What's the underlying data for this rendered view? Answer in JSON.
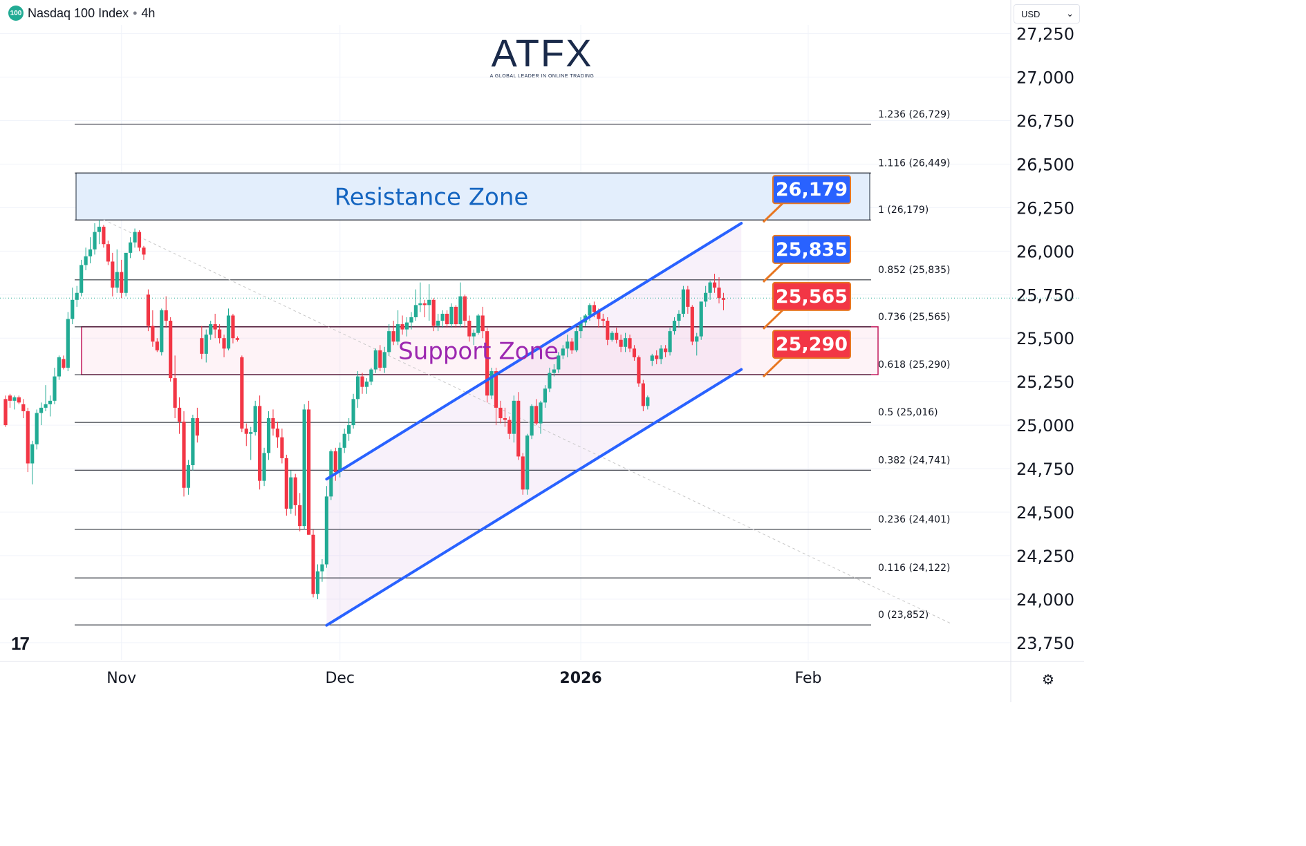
{
  "header": {
    "symbol_badge": "100",
    "title": "Nasdaq 100 Index",
    "separator": "•",
    "interval": "4h"
  },
  "logo": {
    "word": "ATFX",
    "tagline": "A GLOBAL LEADER IN ONLINE TRADING"
  },
  "currency": {
    "value": "USD",
    "icon": "chevron-down-icon"
  },
  "colors": {
    "up": "#22ab94",
    "down": "#f23645",
    "channel": "#2962ff",
    "resistance_label": "#2962ff",
    "support_label": "#f23645",
    "resistance_zone_fill": "#e3eefc",
    "support_zone_border": "#c2185b",
    "support_text": "#9c27b0",
    "resistance_text": "#1565c0"
  },
  "chart_data": {
    "type": "candlestick",
    "title": "Nasdaq 100 Index • 4h",
    "y_axis": {
      "range": [
        23650,
        27300
      ],
      "ticks": [
        23750,
        24000,
        24250,
        24500,
        24750,
        25000,
        25250,
        25500,
        25750,
        26000,
        26250,
        26500,
        26750,
        27000,
        27250
      ],
      "tick_labels": [
        "23,750",
        "24,000",
        "24,250",
        "24,500",
        "24,750",
        "25,000",
        "25,250",
        "25,500",
        "25,750",
        "26,000",
        "26,250",
        "26,500",
        "26,750",
        "27,000",
        "27,250"
      ]
    },
    "x_axis": {
      "labels": [
        {
          "text": "Nov",
          "bold": false,
          "bar": 26
        },
        {
          "text": "Dec",
          "bold": false,
          "bar": 75
        },
        {
          "text": "2026",
          "bold": true,
          "bar": 129
        },
        {
          "text": "Feb",
          "bold": false,
          "bar": 180
        }
      ],
      "bars_total": 220
    },
    "current_price": 25730,
    "candles": [
      [
        25150,
        25170,
        24990,
        25000
      ],
      [
        25170,
        25180,
        25100,
        25140
      ],
      [
        25140,
        25170,
        25090,
        25160
      ],
      [
        25160,
        25170,
        25120,
        25130
      ],
      [
        25120,
        25150,
        25040,
        25080
      ],
      [
        25080,
        25100,
        24730,
        24780
      ],
      [
        24780,
        24910,
        24660,
        24890
      ],
      [
        24890,
        25090,
        24860,
        25070
      ],
      [
        25070,
        25130,
        25000,
        25100
      ],
      [
        25100,
        25230,
        25080,
        25120
      ],
      [
        25120,
        25170,
        25050,
        25140
      ],
      [
        25140,
        25330,
        25120,
        25280
      ],
      [
        25280,
        25400,
        25260,
        25390
      ],
      [
        25380,
        25400,
        25320,
        25330
      ],
      [
        25330,
        25650,
        25310,
        25610
      ],
      [
        25610,
        25790,
        25580,
        25720
      ],
      [
        25720,
        25800,
        25680,
        25760
      ],
      [
        25760,
        25950,
        25740,
        25920
      ],
      [
        25920,
        26020,
        25890,
        25970
      ],
      [
        25970,
        26080,
        25930,
        26010
      ],
      [
        26010,
        26160,
        25980,
        26110
      ],
      [
        26110,
        26180,
        26040,
        26140
      ],
      [
        26140,
        26150,
        26020,
        26040
      ],
      [
        26040,
        26060,
        25920,
        25940
      ],
      [
        25940,
        25990,
        25740,
        25790
      ],
      [
        25790,
        26010,
        25760,
        25880
      ],
      [
        25880,
        25950,
        25730,
        25760
      ],
      [
        25760,
        25980,
        25740,
        25990
      ],
      [
        25990,
        26080,
        25960,
        26050
      ],
      [
        26050,
        26130,
        26020,
        26110
      ],
      [
        26110,
        26120,
        26000,
        26020
      ],
      [
        26020,
        26030,
        25950,
        25980
      ],
      [
        25750,
        25780,
        25540,
        25570
      ],
      [
        25570,
        25660,
        25450,
        25480
      ],
      [
        25480,
        25500,
        25420,
        25430
      ],
      [
        25420,
        25670,
        25400,
        25660
      ],
      [
        25660,
        25740,
        25560,
        25600
      ],
      [
        25600,
        25620,
        25250,
        25270
      ],
      [
        25270,
        25400,
        25040,
        25100
      ],
      [
        25100,
        25160,
        24950,
        25020
      ],
      [
        25020,
        25080,
        24590,
        24640
      ],
      [
        24640,
        24800,
        24600,
        24770
      ],
      [
        24770,
        25060,
        24740,
        25040
      ],
      [
        25040,
        25100,
        24900,
        24940
      ],
      [
        25500,
        25570,
        25380,
        25410
      ],
      [
        25410,
        25550,
        25360,
        25520
      ],
      [
        25520,
        25600,
        25490,
        25580
      ],
      [
        25580,
        25640,
        25500,
        25550
      ],
      [
        25550,
        25580,
        25470,
        25500
      ],
      [
        25500,
        25520,
        25390,
        25440
      ],
      [
        25440,
        25670,
        25430,
        25630
      ],
      [
        25630,
        25640,
        25470,
        25500
      ],
      [
        25500,
        25510,
        25480,
        25490
      ],
      [
        25390,
        25400,
        24960,
        24980
      ],
      [
        24980,
        25010,
        24880,
        24950
      ],
      [
        24950,
        24990,
        24800,
        24960
      ],
      [
        24960,
        25140,
        24940,
        25110
      ],
      [
        25110,
        25170,
        24630,
        24680
      ],
      [
        24680,
        24870,
        24650,
        24840
      ],
      [
        24840,
        25080,
        24800,
        25040
      ],
      [
        25040,
        25090,
        24940,
        24980
      ],
      [
        24980,
        25020,
        24870,
        24930
      ],
      [
        24930,
        24980,
        24780,
        24810
      ],
      [
        24810,
        24830,
        24480,
        24520
      ],
      [
        24520,
        24740,
        24490,
        24700
      ],
      [
        24700,
        24720,
        24480,
        24540
      ],
      [
        24540,
        24610,
        24390,
        24420
      ],
      [
        24420,
        25120,
        24400,
        25090
      ],
      [
        25090,
        25140,
        24370,
        24370
      ],
      [
        24370,
        24400,
        24010,
        24030
      ],
      [
        24030,
        24200,
        24000,
        24160
      ],
      [
        24160,
        24230,
        24100,
        24200
      ],
      [
        24200,
        24650,
        24180,
        24590
      ],
      [
        24590,
        24860,
        24570,
        24850
      ],
      [
        24850,
        24870,
        24680,
        24730
      ],
      [
        24730,
        24900,
        24700,
        24870
      ],
      [
        24870,
        24980,
        24840,
        24950
      ],
      [
        24950,
        25040,
        24910,
        25000
      ],
      [
        25000,
        25180,
        24980,
        25150
      ],
      [
        25150,
        25310,
        25100,
        25280
      ],
      [
        25280,
        25300,
        25180,
        25220
      ],
      [
        25220,
        25270,
        25180,
        25250
      ],
      [
        25250,
        25330,
        25230,
        25320
      ],
      [
        25320,
        25440,
        25300,
        25430
      ],
      [
        25430,
        25460,
        25310,
        25330
      ],
      [
        25330,
        25450,
        25300,
        25420
      ],
      [
        25420,
        25580,
        25400,
        25540
      ],
      [
        25540,
        25600,
        25460,
        25480
      ],
      [
        25480,
        25660,
        25460,
        25580
      ],
      [
        25580,
        25630,
        25520,
        25550
      ],
      [
        25550,
        25620,
        25510,
        25590
      ],
      [
        25590,
        25650,
        25550,
        25620
      ],
      [
        25620,
        25780,
        25600,
        25690
      ],
      [
        25690,
        25820,
        25650,
        25700
      ],
      [
        25700,
        25720,
        25620,
        25690
      ],
      [
        25690,
        25810,
        25600,
        25720
      ],
      [
        25720,
        25730,
        25540,
        25570
      ],
      [
        25570,
        25640,
        25540,
        25600
      ],
      [
        25600,
        25660,
        25560,
        25640
      ],
      [
        25640,
        25660,
        25560,
        25580
      ],
      [
        25580,
        25700,
        25560,
        25680
      ],
      [
        25680,
        25690,
        25560,
        25580
      ],
      [
        25580,
        25820,
        25560,
        25740
      ],
      [
        25740,
        25750,
        25560,
        25600
      ],
      [
        25600,
        25630,
        25480,
        25510
      ],
      [
        25510,
        25550,
        25460,
        25530
      ],
      [
        25530,
        25640,
        25520,
        25630
      ],
      [
        25630,
        25680,
        25500,
        25540
      ],
      [
        25540,
        25560,
        25130,
        25170
      ],
      [
        25170,
        25330,
        25150,
        25310
      ],
      [
        25310,
        25330,
        25000,
        25100
      ],
      [
        25100,
        25140,
        25010,
        25040
      ],
      [
        25040,
        25100,
        24990,
        25030
      ],
      [
        25030,
        25050,
        24920,
        24950
      ],
      [
        24950,
        25170,
        24900,
        25140
      ],
      [
        25140,
        25190,
        24800,
        24820
      ],
      [
        24820,
        24840,
        24600,
        24630
      ],
      [
        24630,
        24950,
        24600,
        24940
      ],
      [
        24940,
        25120,
        24920,
        25110
      ],
      [
        25110,
        25150,
        25000,
        25010
      ],
      [
        25010,
        25140,
        24950,
        25130
      ],
      [
        25130,
        25230,
        25100,
        25210
      ],
      [
        25210,
        25330,
        25190,
        25300
      ],
      [
        25300,
        25350,
        25280,
        25320
      ],
      [
        25320,
        25420,
        25300,
        25400
      ],
      [
        25400,
        25460,
        25380,
        25440
      ],
      [
        25440,
        25520,
        25390,
        25480
      ],
      [
        25480,
        25500,
        25410,
        25430
      ],
      [
        25430,
        25560,
        25420,
        25540
      ],
      [
        25540,
        25620,
        25500,
        25590
      ],
      [
        25590,
        25640,
        25570,
        25630
      ],
      [
        25630,
        25700,
        25600,
        25690
      ],
      [
        25690,
        25710,
        25620,
        25650
      ],
      [
        25650,
        25670,
        25560,
        25610
      ],
      [
        25610,
        25640,
        25560,
        25600
      ],
      [
        25600,
        25620,
        25460,
        25490
      ],
      [
        25490,
        25540,
        25480,
        25530
      ],
      [
        25530,
        25560,
        25470,
        25490
      ],
      [
        25490,
        25520,
        25420,
        25450
      ],
      [
        25450,
        25530,
        25420,
        25500
      ],
      [
        25500,
        25520,
        25420,
        25440
      ],
      [
        25440,
        25460,
        25370,
        25390
      ],
      [
        25390,
        25400,
        25220,
        25240
      ],
      [
        25240,
        25260,
        25080,
        25110
      ],
      [
        25110,
        25170,
        25090,
        25160
      ],
      [
        25370,
        25410,
        25340,
        25400
      ],
      [
        25400,
        25430,
        25350,
        25380
      ],
      [
        25380,
        25460,
        25350,
        25440
      ],
      [
        25440,
        25460,
        25390,
        25420
      ],
      [
        25420,
        25560,
        25400,
        25540
      ],
      [
        25540,
        25620,
        25520,
        25600
      ],
      [
        25600,
        25660,
        25560,
        25640
      ],
      [
        25640,
        25800,
        25620,
        25780
      ],
      [
        25780,
        25800,
        25640,
        25680
      ],
      [
        25680,
        25690,
        25460,
        25480
      ],
      [
        25480,
        25530,
        25400,
        25510
      ],
      [
        25510,
        25700,
        25490,
        25710
      ],
      [
        25710,
        25800,
        25680,
        25760
      ],
      [
        25760,
        25830,
        25720,
        25820
      ],
      [
        25820,
        25870,
        25760,
        25790
      ],
      [
        25790,
        25850,
        25700,
        25730
      ],
      [
        25730,
        25760,
        25660,
        25720
      ]
    ],
    "channel": {
      "upper": [
        {
          "bar": 72,
          "price": 24690
        },
        {
          "bar": 165,
          "price": 26160
        }
      ],
      "lower": [
        {
          "bar": 72,
          "price": 23850
        },
        {
          "bar": 165,
          "price": 25320
        }
      ]
    },
    "diagonal_trend": [
      {
        "bar": 22,
        "price": 26180
      },
      {
        "bar": 212,
        "price": 23860
      }
    ],
    "fib_levels": [
      {
        "label": "1.236 (26,729)",
        "price": 26729
      },
      {
        "label": "1.116 (26,449)",
        "price": 26449
      },
      {
        "label": "1 (26,179)",
        "price": 26179
      },
      {
        "label": "0.852 (25,835)",
        "price": 25835
      },
      {
        "label": "0.736 (25,565)",
        "price": 25565
      },
      {
        "label": "0.618 (25,290)",
        "price": 25290
      },
      {
        "label": "0.5 (25,016)",
        "price": 25016
      },
      {
        "label": "0.382 (24,741)",
        "price": 24741
      },
      {
        "label": "0.236 (24,401)",
        "price": 24401
      },
      {
        "label": "0.116 (24,122)",
        "price": 24122
      },
      {
        "label": "0 (23,852)",
        "price": 23852
      }
    ],
    "zones": [
      {
        "name": "Resistance Zone",
        "top": 26449,
        "bottom": 26179,
        "kind": "resistance"
      },
      {
        "name": "Support Zone",
        "top": 25565,
        "bottom": 25290,
        "kind": "support"
      }
    ],
    "price_callouts": [
      {
        "text": "26,179",
        "price": 26179,
        "kind": "resistance"
      },
      {
        "text": "25,835",
        "price": 25835,
        "kind": "resistance"
      },
      {
        "text": "25,565",
        "price": 25565,
        "kind": "support"
      },
      {
        "text": "25,290",
        "price": 25290,
        "kind": "support"
      }
    ]
  }
}
